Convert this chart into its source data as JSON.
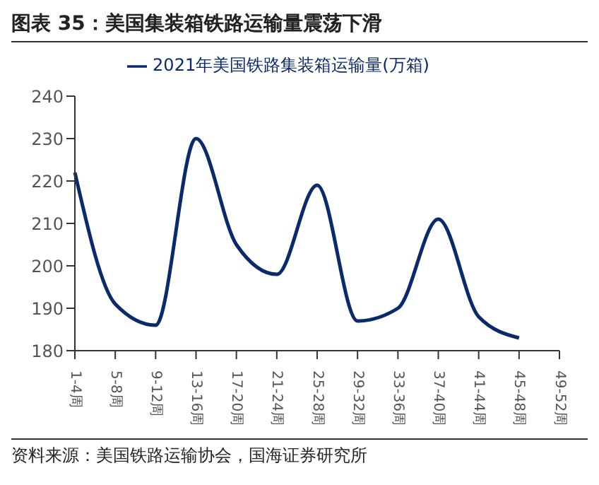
{
  "chart_data": {
    "type": "line",
    "title": "图表 35：美国集装箱铁路运输量震荡下滑",
    "categories": [
      "1-4周",
      "5-8周",
      "9-12周",
      "13-16周",
      "17-20周",
      "21-24周",
      "25-28周",
      "29-32周",
      "33-36周",
      "37-40周",
      "41-44周",
      "45-48周",
      "49-52周"
    ],
    "series": [
      {
        "name": "2021年美国铁路集装箱运输量(万箱)",
        "color": "#0b2a6b",
        "values": [
          222,
          191,
          186,
          230,
          205,
          198,
          219,
          187,
          190,
          211,
          188,
          183,
          null
        ]
      }
    ],
    "ylim": [
      180,
      240
    ],
    "yticks": [
      180,
      190,
      200,
      210,
      220,
      230,
      240
    ],
    "grid": false,
    "legend": "top",
    "marker": "none",
    "line_style": "solid",
    "annotations": [
      "资料来源：美国铁路运输协会，国海证券研究所"
    ]
  }
}
